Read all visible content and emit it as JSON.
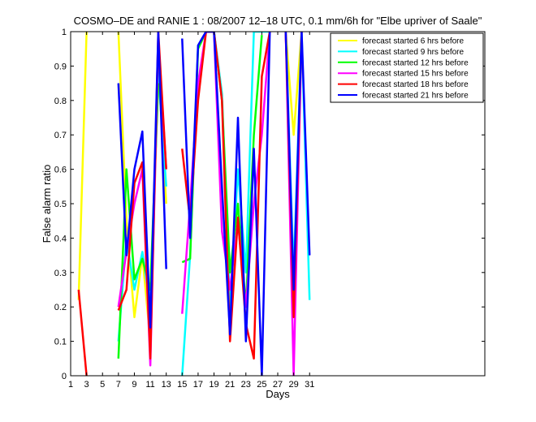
{
  "chart_data": {
    "type": "line",
    "title": "COSMO–DE and RANIE 1 : 08/2007 12–18 UTC, 0.1 mm/6h for \"Elbe upriver of Saale\"",
    "xlabel": "Days",
    "ylabel": "False alarm ratio",
    "xlim": [
      1,
      53
    ],
    "ylim": [
      0,
      1
    ],
    "xticks": [
      1,
      3,
      5,
      7,
      9,
      11,
      13,
      15,
      17,
      19,
      21,
      23,
      25,
      27,
      29,
      31
    ],
    "yticks": [
      0,
      0.1,
      0.2,
      0.3,
      0.4,
      0.5,
      0.6,
      0.7,
      0.8,
      0.9,
      1
    ],
    "ytick_labels": [
      "0",
      "0.1",
      "0.2",
      "0.3",
      "0.4",
      "0.5",
      "0.6",
      "0.7",
      "0.8",
      "0.9",
      "1"
    ],
    "grid": false,
    "legend_position": "top-right",
    "series": [
      {
        "name": "forecast started 6 hrs before",
        "color": "#ffff00",
        "segments": [
          [
            [
              2,
              0.22
            ],
            [
              3,
              1.0
            ]
          ],
          [
            [
              7,
              1.0
            ],
            [
              8,
              0.45
            ],
            [
              9,
              0.17
            ],
            [
              10,
              0.35
            ],
            [
              11,
              0.1
            ],
            [
              12,
              0.9
            ],
            [
              13,
              0.5
            ]
          ],
          [
            [
              28,
              1.0
            ],
            [
              29,
              0.7
            ],
            [
              30,
              1.0
            ]
          ]
        ]
      },
      {
        "name": "forecast started 9 hrs before",
        "color": "#00ffff",
        "segments": [
          [
            [
              7,
              0.1
            ],
            [
              8,
              0.4
            ],
            [
              9,
              0.25
            ],
            [
              10,
              0.36
            ],
            [
              11,
              0.2
            ],
            [
              12,
              0.88
            ],
            [
              13,
              0.55
            ]
          ],
          [
            [
              15,
              0.0
            ],
            [
              16,
              0.35
            ],
            [
              17,
              0.96
            ],
            [
              18,
              1.0
            ],
            [
              19,
              1.0
            ],
            [
              20,
              0.82
            ],
            [
              21,
              0.2
            ],
            [
              22,
              0.6
            ],
            [
              23,
              0.3
            ],
            [
              24,
              1.0
            ],
            [
              25,
              1.0
            ],
            [
              26,
              1.0
            ]
          ],
          [
            [
              28,
              1.0
            ],
            [
              29,
              0.3
            ],
            [
              30,
              1.0
            ],
            [
              31,
              0.22
            ]
          ]
        ]
      },
      {
        "name": "forecast started 12 hrs before",
        "color": "#00ff00",
        "segments": [
          [
            [
              7,
              0.05
            ],
            [
              8,
              0.6
            ],
            [
              9,
              0.28
            ],
            [
              10,
              0.34
            ],
            [
              11,
              0.25
            ],
            [
              12,
              0.85
            ]
          ],
          [
            [
              15,
              0.33
            ],
            [
              16,
              0.34
            ],
            [
              17,
              0.95
            ],
            [
              18,
              1.0
            ],
            [
              19,
              1.0
            ],
            [
              20,
              0.8
            ],
            [
              21,
              0.3
            ],
            [
              22,
              0.5
            ],
            [
              23,
              0.2
            ],
            [
              24,
              0.7
            ],
            [
              25,
              0.99
            ]
          ]
        ]
      },
      {
        "name": "forecast started 15 hrs before",
        "color": "#ff00ff",
        "segments": [
          [
            [
              7,
              0.2
            ],
            [
              8,
              0.36
            ],
            [
              9,
              0.5
            ],
            [
              10,
              0.6
            ],
            [
              11,
              0.03
            ],
            [
              12,
              0.97
            ],
            [
              13,
              0.6
            ]
          ],
          [
            [
              15,
              0.18
            ],
            [
              16,
              0.5
            ],
            [
              17,
              0.85
            ],
            [
              18,
              1.0
            ],
            [
              19,
              1.0
            ],
            [
              20,
              0.42
            ],
            [
              21,
              0.25
            ],
            [
              22,
              0.45
            ],
            [
              23,
              0.2
            ],
            [
              24,
              0.5
            ],
            [
              25,
              0.7
            ],
            [
              26,
              1.0
            ]
          ],
          [
            [
              28,
              1.0
            ],
            [
              29,
              0.0
            ],
            [
              30,
              1.0
            ]
          ]
        ]
      },
      {
        "name": "forecast started 18 hrs before",
        "color": "#ff0000",
        "segments": [
          [
            [
              2,
              0.25
            ],
            [
              3,
              0.0
            ]
          ],
          [
            [
              7,
              0.19
            ],
            [
              8,
              0.25
            ],
            [
              9,
              0.56
            ],
            [
              10,
              0.62
            ],
            [
              11,
              0.05
            ],
            [
              12,
              1.0
            ],
            [
              13,
              0.6
            ]
          ],
          [
            [
              15,
              0.66
            ],
            [
              16,
              0.45
            ],
            [
              17,
              0.8
            ],
            [
              18,
              1.0
            ],
            [
              19,
              1.0
            ],
            [
              20,
              0.8
            ],
            [
              21,
              0.1
            ],
            [
              22,
              0.46
            ],
            [
              23,
              0.15
            ],
            [
              24,
              0.05
            ],
            [
              25,
              0.87
            ],
            [
              26,
              1.0
            ]
          ],
          [
            [
              28,
              1.0
            ],
            [
              29,
              0.17
            ],
            [
              30,
              1.0
            ]
          ]
        ]
      },
      {
        "name": "forecast started 21 hrs before",
        "color": "#0000ff",
        "segments": [
          [
            [
              7,
              0.85
            ],
            [
              8,
              0.35
            ],
            [
              9,
              0.6
            ],
            [
              10,
              0.71
            ],
            [
              11,
              0.14
            ],
            [
              12,
              1.0
            ],
            [
              13,
              0.31
            ]
          ],
          [
            [
              15,
              0.98
            ],
            [
              16,
              0.4
            ],
            [
              17,
              0.96
            ],
            [
              18,
              1.0
            ],
            [
              19,
              1.0
            ],
            [
              20,
              0.55
            ],
            [
              21,
              0.12
            ],
            [
              22,
              0.75
            ],
            [
              23,
              0.1
            ],
            [
              24,
              0.66
            ],
            [
              25,
              0.0
            ],
            [
              26,
              1.0
            ]
          ],
          [
            [
              28,
              1.0
            ],
            [
              29,
              0.25
            ],
            [
              30,
              1.0
            ],
            [
              31,
              0.35
            ]
          ]
        ]
      }
    ]
  }
}
